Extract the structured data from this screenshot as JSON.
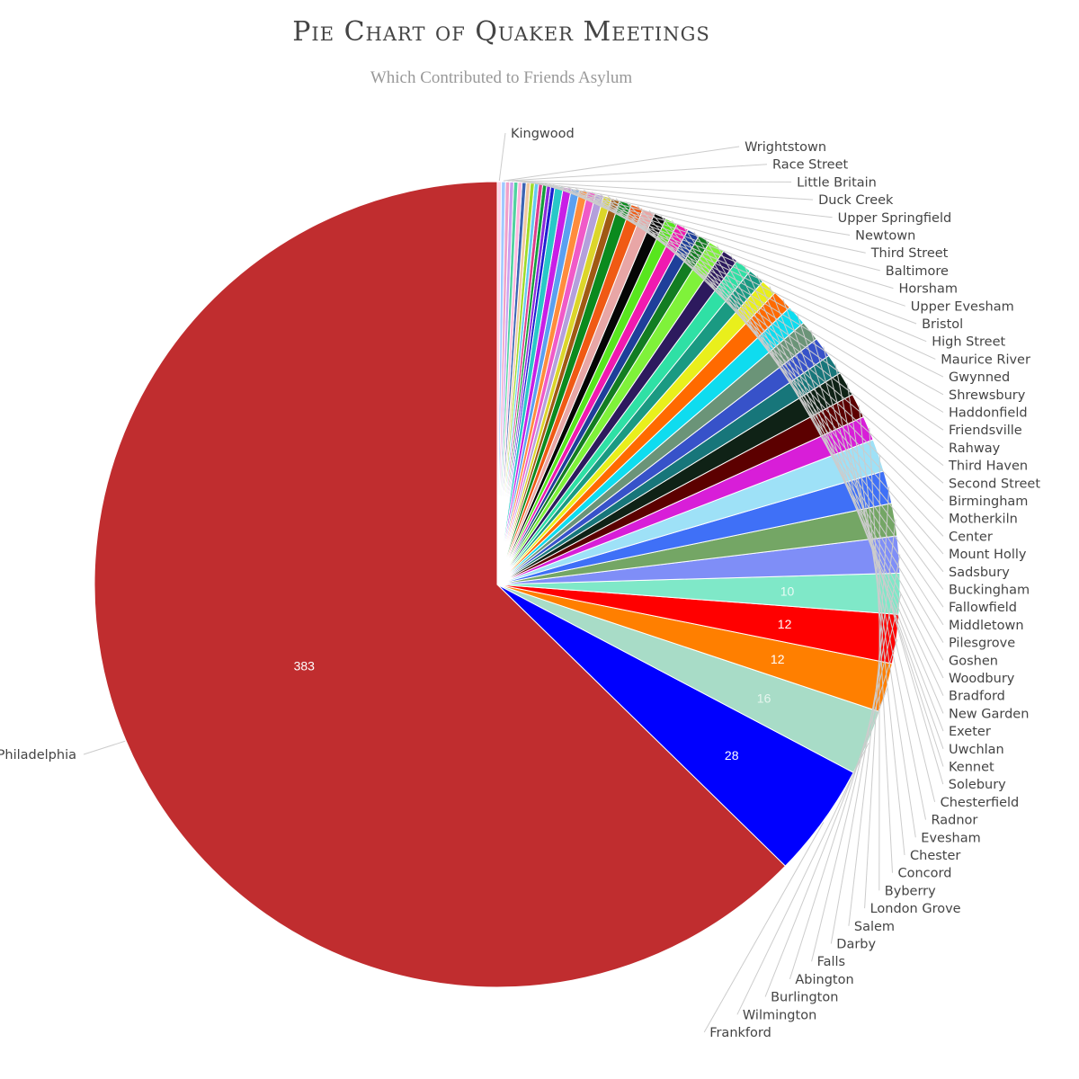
{
  "chart_data": {
    "type": "pie",
    "title": "Pie Chart of Quaker Meetings",
    "subtitle": "Which Contributed to Friends Asylum",
    "slices": [
      {
        "label": "Philadelphia",
        "value": 383,
        "color": "#c02d2f",
        "data_label": "383",
        "label_color": "#ffffff"
      },
      {
        "label": "Frankford",
        "value": 28,
        "color": "#0000ff",
        "data_label": "28",
        "label_color": "#ffffff"
      },
      {
        "label": "Wilmington",
        "value": 16,
        "color": "#a8dcc7",
        "data_label": "16",
        "label_color": "#e6f5ee"
      },
      {
        "label": "Burlington",
        "value": 12,
        "color": "#ff7f00",
        "data_label": "12",
        "label_color": "#ffffff"
      },
      {
        "label": "Abington",
        "value": 12,
        "color": "#ff0000",
        "data_label": "12",
        "label_color": "#ffffff"
      },
      {
        "label": "Falls",
        "value": 10,
        "color": "#7fe8c8",
        "data_label": "10",
        "label_color": "#e9fbf5"
      },
      {
        "label": "Darby",
        "value": 9,
        "color": "#7f8ef7",
        "data_label": "",
        "label_color": "#ffffff"
      },
      {
        "label": "Salem",
        "value": 8,
        "color": "#74a665",
        "data_label": "",
        "label_color": "#ffffff"
      },
      {
        "label": "London Grove",
        "value": 8,
        "color": "#3f70f7",
        "data_label": "",
        "label_color": "#ffffff"
      },
      {
        "label": "Byberry",
        "value": 8,
        "color": "#9ee1f7",
        "data_label": "",
        "label_color": "#ffffff"
      },
      {
        "label": "Concord",
        "value": 6,
        "color": "#d81ed8",
        "data_label": "",
        "label_color": "#ffffff"
      },
      {
        "label": "Chester",
        "value": 6,
        "color": "#5c0000",
        "data_label": "",
        "label_color": "#ffffff"
      },
      {
        "label": "Evesham",
        "value": 6,
        "color": "#0f2216",
        "data_label": "",
        "label_color": "#ffffff"
      },
      {
        "label": "Radnor",
        "value": 5,
        "color": "#17767a",
        "data_label": "",
        "label_color": "#ffffff"
      },
      {
        "label": "Chesterfield",
        "value": 5,
        "color": "#3752c9",
        "data_label": "",
        "label_color": "#ffffff"
      },
      {
        "label": "Solebury",
        "value": 5,
        "color": "#6b9478",
        "data_label": "",
        "label_color": "#ffffff"
      },
      {
        "label": "Kennet",
        "value": 5,
        "color": "#0fdcef",
        "data_label": "",
        "label_color": "#ffffff"
      },
      {
        "label": "Uwchlan",
        "value": 5,
        "color": "#ff6a00",
        "data_label": "",
        "label_color": "#ffffff"
      },
      {
        "label": "Exeter",
        "value": 4,
        "color": "#e9ef1c",
        "data_label": "",
        "label_color": "#ffffff"
      },
      {
        "label": "New Garden",
        "value": 4,
        "color": "#1a9a82",
        "data_label": "",
        "label_color": "#ffffff"
      },
      {
        "label": "Bradford",
        "value": 4,
        "color": "#2fe0a5",
        "data_label": "",
        "label_color": "#ffffff"
      },
      {
        "label": "Woodbury",
        "value": 4,
        "color": "#2d1a5e",
        "data_label": "",
        "label_color": "#ffffff"
      },
      {
        "label": "Goshen",
        "value": 4,
        "color": "#7ff23a",
        "data_label": "",
        "label_color": "#ffffff"
      },
      {
        "label": "Pilesgrove",
        "value": 3,
        "color": "#137d22",
        "data_label": "",
        "label_color": "#ffffff"
      },
      {
        "label": "Middletown",
        "value": 3,
        "color": "#1f3f9a",
        "data_label": "",
        "label_color": "#ffffff"
      },
      {
        "label": "Fallowfield",
        "value": 3,
        "color": "#f01ab0",
        "data_label": "",
        "label_color": "#ffffff"
      },
      {
        "label": "Buckingham",
        "value": 3,
        "color": "#58e61e",
        "data_label": "",
        "label_color": "#ffffff"
      },
      {
        "label": "Sadsbury",
        "value": 3,
        "color": "#050505",
        "data_label": "",
        "label_color": "#ffffff"
      },
      {
        "label": "Mount Holly",
        "value": 3,
        "color": "#e8a6a6",
        "data_label": "",
        "label_color": "#ffffff"
      },
      {
        "label": "Center",
        "value": 3,
        "color": "#f05a14",
        "data_label": "",
        "label_color": "#ffffff"
      },
      {
        "label": "Motherkiln",
        "value": 3,
        "color": "#0b8a1e",
        "data_label": "",
        "label_color": "#ffffff"
      },
      {
        "label": "Birmingham",
        "value": 2,
        "color": "#a05a14",
        "data_label": "",
        "label_color": "#ffffff"
      },
      {
        "label": "Second Street",
        "value": 2,
        "color": "#dcd62a",
        "data_label": "",
        "label_color": "#ffffff"
      },
      {
        "label": "Third Haven",
        "value": 2,
        "color": "#b4a0dc",
        "data_label": "",
        "label_color": "#ffffff"
      },
      {
        "label": "Rahway",
        "value": 2,
        "color": "#f05ac8",
        "data_label": "",
        "label_color": "#ffffff"
      },
      {
        "label": "Friendsville",
        "value": 2,
        "color": "#ff8c3c",
        "data_label": "",
        "label_color": "#ffffff"
      },
      {
        "label": "Haddonfield",
        "value": 2,
        "color": "#5aa0f0",
        "data_label": "",
        "label_color": "#ffffff"
      },
      {
        "label": "Shrewsbury",
        "value": 2,
        "color": "#c81ee6",
        "data_label": "",
        "label_color": "#ffffff"
      },
      {
        "label": "Gwynned",
        "value": 2,
        "color": "#28c8c8",
        "data_label": "",
        "label_color": "#ffffff"
      },
      {
        "label": "Maurice River",
        "value": 1,
        "color": "#1e1ed2",
        "data_label": "",
        "label_color": "#ffffff"
      },
      {
        "label": "High Street",
        "value": 1,
        "color": "#8c28dc",
        "data_label": "",
        "label_color": "#ffffff"
      },
      {
        "label": "Bristol",
        "value": 1,
        "color": "#14a03c",
        "data_label": "",
        "label_color": "#ffffff"
      },
      {
        "label": "Upper Evesham",
        "value": 1,
        "color": "#dc3c8c",
        "data_label": "",
        "label_color": "#ffffff"
      },
      {
        "label": "Horsham",
        "value": 1,
        "color": "#64c8f0",
        "data_label": "",
        "label_color": "#ffffff"
      },
      {
        "label": "Baltimore",
        "value": 1,
        "color": "#a0dc28",
        "data_label": "",
        "label_color": "#ffffff"
      },
      {
        "label": "Third Street",
        "value": 1,
        "color": "#f0c8a0",
        "data_label": "",
        "label_color": "#ffffff"
      },
      {
        "label": "Newtown",
        "value": 1,
        "color": "#3c64b4",
        "data_label": "",
        "label_color": "#ffffff"
      },
      {
        "label": "Upper Springfield",
        "value": 1,
        "color": "#ffb4dc",
        "data_label": "",
        "label_color": "#ffffff"
      },
      {
        "label": "Duck Creek",
        "value": 1,
        "color": "#50d2a0",
        "data_label": "",
        "label_color": "#ffffff"
      },
      {
        "label": "Little Britain",
        "value": 1,
        "color": "#c8a0f0",
        "data_label": "",
        "label_color": "#ffffff"
      },
      {
        "label": "Race Street",
        "value": 1,
        "color": "#f0a0c8",
        "data_label": "",
        "label_color": "#ffffff"
      },
      {
        "label": "Wrightstown",
        "value": 1,
        "color": "#a0c8ff",
        "data_label": "",
        "label_color": "#ffffff"
      },
      {
        "label": "Kingwood",
        "value": 1,
        "color": "#ffd2e6",
        "data_label": "",
        "label_color": "#ffffff"
      }
    ],
    "legend": "none"
  }
}
